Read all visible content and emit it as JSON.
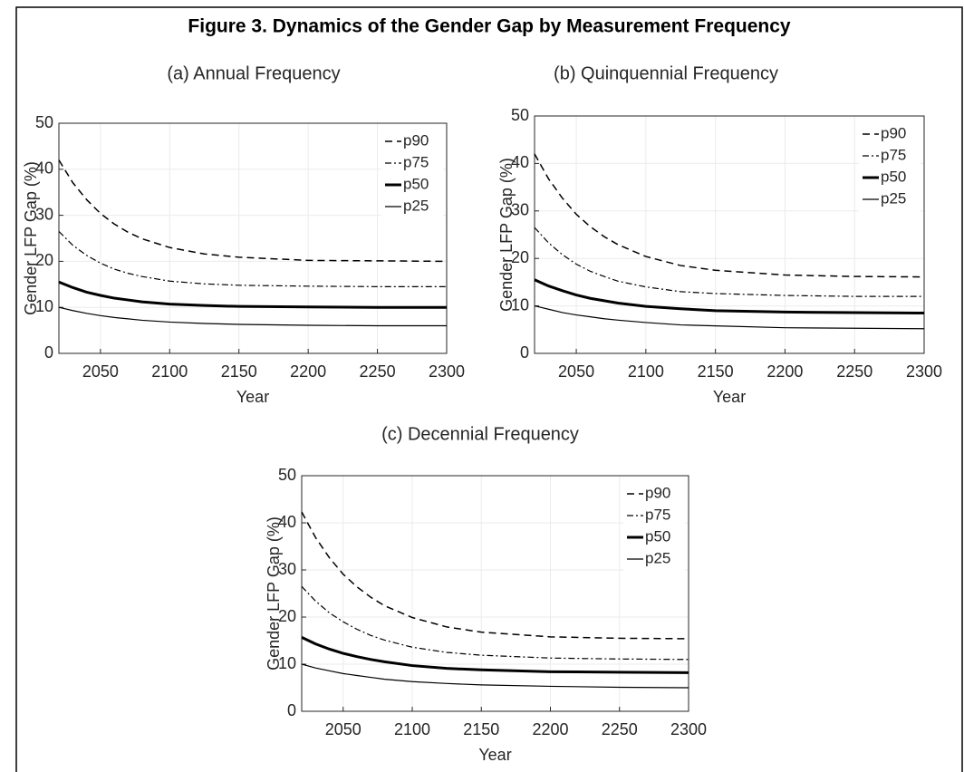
{
  "title": "Figure 3. Dynamics of the Gender Gap by Measurement Frequency",
  "chart_data": [
    {
      "type": "line",
      "title": "(a) Annual Frequency",
      "xlabel": "Year",
      "ylabel": "Gender LFP Gap (%)",
      "x": [
        2020,
        2030,
        2040,
        2050,
        2060,
        2070,
        2080,
        2100,
        2125,
        2150,
        2200,
        2250,
        2300
      ],
      "xlim": [
        2020,
        2300
      ],
      "xticks": [
        2050,
        2100,
        2150,
        2200,
        2250,
        2300
      ],
      "ylim": [
        0,
        50
      ],
      "yticks": [
        0,
        10,
        20,
        30,
        40,
        50
      ],
      "grid": true,
      "legend": "upper right",
      "series": [
        {
          "name": "p90",
          "color": "#000000",
          "style": "dashed",
          "width": 1.5,
          "values": [
            42,
            37.1,
            33.4,
            30.4,
            28.1,
            26.3,
            24.9,
            23.0,
            21.6,
            20.9,
            20.2,
            20.1,
            20.0
          ]
        },
        {
          "name": "p75",
          "color": "#000000",
          "style": "dashdot",
          "width": 1.2,
          "values": [
            26.5,
            23.5,
            21.3,
            19.6,
            18.3,
            17.4,
            16.7,
            15.7,
            15.1,
            14.8,
            14.6,
            14.5,
            14.5
          ]
        },
        {
          "name": "p50",
          "color": "#000000",
          "style": "solid",
          "width": 3,
          "values": [
            15.5,
            14.3,
            13.3,
            12.6,
            12.0,
            11.6,
            11.2,
            10.7,
            10.4,
            10.2,
            10.1,
            10.0,
            10.0
          ]
        },
        {
          "name": "p25",
          "color": "#000000",
          "style": "solid",
          "width": 1.2,
          "values": [
            10,
            9.3,
            8.7,
            8.2,
            7.8,
            7.5,
            7.2,
            6.8,
            6.5,
            6.3,
            6.1,
            6.0,
            6.0
          ]
        }
      ]
    },
    {
      "type": "line",
      "title": "(b) Quinquennial Frequency",
      "xlabel": "Year",
      "ylabel": "Gender LFP Gap (%)",
      "x": [
        2020,
        2030,
        2040,
        2050,
        2060,
        2070,
        2080,
        2100,
        2125,
        2150,
        2200,
        2250,
        2300
      ],
      "xlim": [
        2020,
        2300
      ],
      "xticks": [
        2050,
        2100,
        2150,
        2200,
        2250,
        2300
      ],
      "ylim": [
        0,
        50
      ],
      "yticks": [
        0,
        10,
        20,
        30,
        40,
        50
      ],
      "grid": true,
      "legend": "upper right",
      "series": [
        {
          "name": "p90",
          "color": "#000000",
          "style": "dashed",
          "width": 1.5,
          "values": [
            42,
            36.8,
            32.7,
            29.3,
            26.7,
            24.6,
            22.9,
            20.4,
            18.5,
            17.5,
            16.5,
            16.2,
            16.1
          ]
        },
        {
          "name": "p75",
          "color": "#000000",
          "style": "dashdot",
          "width": 1.2,
          "values": [
            26.5,
            23.3,
            20.8,
            18.8,
            17.3,
            16.2,
            15.2,
            14.0,
            13.0,
            12.6,
            12.2,
            12.0,
            12.0
          ]
        },
        {
          "name": "p50",
          "color": "#000000",
          "style": "solid",
          "width": 3,
          "values": [
            15.5,
            14.2,
            13.2,
            12.3,
            11.6,
            11.1,
            10.6,
            9.9,
            9.4,
            9.0,
            8.7,
            8.6,
            8.5
          ]
        },
        {
          "name": "p25",
          "color": "#000000",
          "style": "solid",
          "width": 1.2,
          "values": [
            10,
            9.3,
            8.6,
            8.1,
            7.7,
            7.3,
            7.0,
            6.5,
            6.0,
            5.8,
            5.4,
            5.3,
            5.2
          ]
        }
      ]
    },
    {
      "type": "line",
      "title": "(c) Decennial Frequency",
      "xlabel": "Year",
      "ylabel": "Gender LFP Gap (%)",
      "x": [
        2020,
        2030,
        2040,
        2050,
        2060,
        2070,
        2080,
        2100,
        2125,
        2150,
        2200,
        2250,
        2300
      ],
      "xlim": [
        2020,
        2300
      ],
      "xticks": [
        2050,
        2100,
        2150,
        2200,
        2250,
        2300
      ],
      "ylim": [
        0,
        50
      ],
      "yticks": [
        0,
        10,
        20,
        30,
        40,
        50
      ],
      "grid": true,
      "legend": "upper right",
      "series": [
        {
          "name": "p90",
          "color": "#000000",
          "style": "dashed",
          "width": 1.5,
          "values": [
            42.3,
            36.9,
            32.6,
            29.1,
            26.4,
            24.2,
            22.4,
            19.9,
            17.9,
            16.8,
            15.8,
            15.5,
            15.4
          ]
        },
        {
          "name": "p75",
          "color": "#000000",
          "style": "dashdot",
          "width": 1.2,
          "values": [
            26.5,
            23.4,
            20.9,
            19.0,
            17.4,
            16.1,
            15.1,
            13.6,
            12.5,
            11.9,
            11.3,
            11.1,
            11.0
          ]
        },
        {
          "name": "p50",
          "color": "#000000",
          "style": "solid",
          "width": 3,
          "values": [
            15.7,
            14.3,
            13.2,
            12.3,
            11.6,
            11.0,
            10.5,
            9.7,
            9.1,
            8.8,
            8.4,
            8.3,
            8.2
          ]
        },
        {
          "name": "p25",
          "color": "#000000",
          "style": "solid",
          "width": 1.2,
          "values": [
            10,
            9.2,
            8.6,
            8.0,
            7.6,
            7.2,
            6.8,
            6.3,
            5.9,
            5.6,
            5.3,
            5.1,
            5.0
          ]
        }
      ]
    }
  ]
}
